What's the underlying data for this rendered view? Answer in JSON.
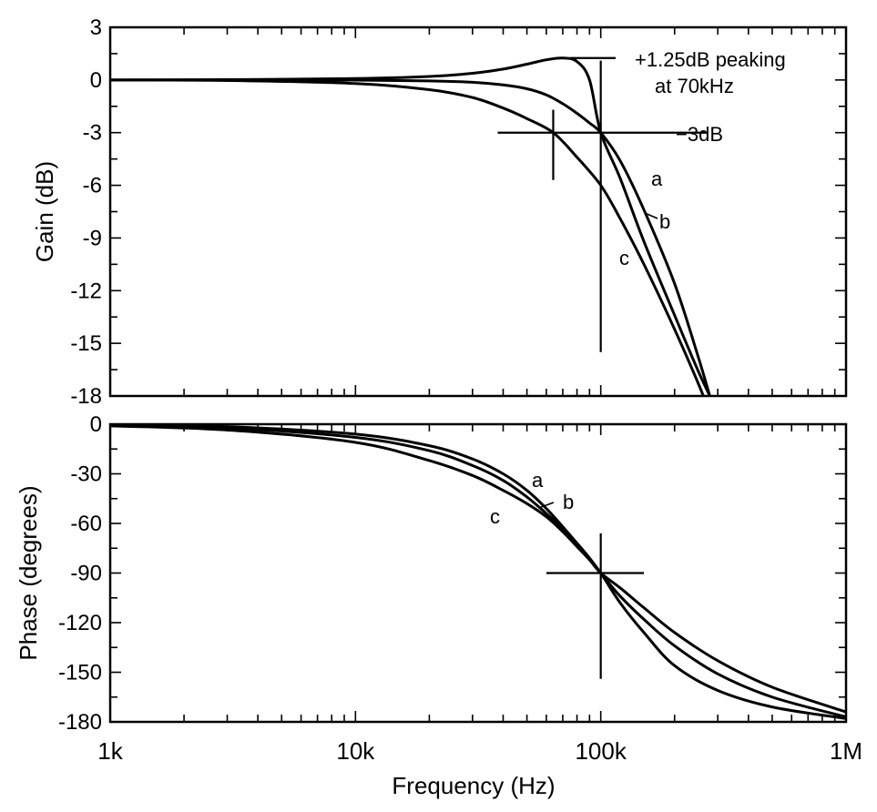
{
  "chart_data": [
    {
      "type": "line",
      "title": "",
      "xlabel": "Frequency (Hz)",
      "ylabel": "Gain (dB)",
      "xscale": "log",
      "xlim": [
        1000,
        1000000
      ],
      "ylim": [
        -18,
        3
      ],
      "xticks": [
        {
          "value": 1000,
          "label": "1k"
        },
        {
          "value": 10000,
          "label": "10k"
        },
        {
          "value": 100000,
          "label": "100k"
        },
        {
          "value": 1000000,
          "label": "1M"
        }
      ],
      "yticks": [
        {
          "value": 3,
          "label": "3"
        },
        {
          "value": 0,
          "label": "0"
        },
        {
          "value": -3,
          "label": "-3"
        },
        {
          "value": -6,
          "label": "-6"
        },
        {
          "value": -9,
          "label": "-9"
        },
        {
          "value": -12,
          "label": "-12"
        },
        {
          "value": -15,
          "label": "-15"
        },
        {
          "value": -18,
          "label": "-18"
        }
      ],
      "series": [
        {
          "name": "a",
          "x": [
            1000,
            3000,
            10000,
            20000,
            30000,
            40000,
            50000,
            60000,
            70000,
            80000,
            90000,
            100000,
            120000,
            150000,
            200000,
            250000,
            290000
          ],
          "y": [
            0,
            0.02,
            0.08,
            0.2,
            0.38,
            0.62,
            0.9,
            1.15,
            1.25,
            1.05,
            0.0,
            -3,
            -5.6,
            -9.2,
            -13.4,
            -16.6,
            -18.5
          ]
        },
        {
          "name": "b",
          "x": [
            1000,
            3000,
            10000,
            20000,
            30000,
            40000,
            50000,
            60000,
            70000,
            80000,
            90000,
            100000,
            120000,
            150000,
            200000,
            250000,
            285000
          ],
          "y": [
            0,
            0,
            -0.01,
            -0.05,
            -0.13,
            -0.28,
            -0.5,
            -0.85,
            -1.35,
            -1.9,
            -2.45,
            -3,
            -4.6,
            -7.4,
            -11.6,
            -15.8,
            -18.5
          ]
        },
        {
          "name": "c",
          "x": [
            1000,
            3000,
            10000,
            20000,
            30000,
            40000,
            50000,
            64000,
            80000,
            100000,
            120000,
            150000,
            200000,
            250000,
            270000
          ],
          "y": [
            0,
            -0.03,
            -0.2,
            -0.55,
            -1.0,
            -1.6,
            -2.2,
            -3,
            -4.4,
            -6.0,
            -7.9,
            -10.5,
            -14.2,
            -17.3,
            -18.5
          ]
        }
      ],
      "curve_labels": [
        "a",
        "b",
        "c"
      ],
      "annotations": [
        {
          "text_line1": "+1.25dB peaking",
          "text_line2": "at 70kHz",
          "x": 70000,
          "y": 1.25
        },
        {
          "text": "−3dB",
          "y": -3
        }
      ],
      "markers": [
        {
          "x": 100000,
          "y": -3
        },
        {
          "x": 64000,
          "y": -3
        }
      ]
    },
    {
      "type": "line",
      "title": "",
      "xlabel": "Frequency (Hz)",
      "ylabel": "Phase (degrees)",
      "xscale": "log",
      "xlim": [
        1000,
        1000000
      ],
      "ylim": [
        -180,
        0
      ],
      "xticks": [
        {
          "value": 1000,
          "label": "1k"
        },
        {
          "value": 10000,
          "label": "10k"
        },
        {
          "value": 100000,
          "label": "100k"
        },
        {
          "value": 1000000,
          "label": "1M"
        }
      ],
      "yticks": [
        {
          "value": 0,
          "label": "0"
        },
        {
          "value": -30,
          "label": "-30"
        },
        {
          "value": -60,
          "label": "-60"
        },
        {
          "value": -90,
          "label": "-90"
        },
        {
          "value": -120,
          "label": "-120"
        },
        {
          "value": -150,
          "label": "-150"
        },
        {
          "value": -180,
          "label": "-180"
        }
      ],
      "series": [
        {
          "name": "a",
          "x": [
            1000,
            3000,
            10000,
            20000,
            30000,
            40000,
            50000,
            60000,
            70000,
            80000,
            90000,
            100000,
            120000,
            150000,
            200000,
            300000,
            500000,
            1000000
          ],
          "y": [
            -0.5,
            -1.5,
            -6,
            -13,
            -21,
            -30,
            -40,
            -51,
            -62,
            -72,
            -81,
            -90,
            -108,
            -126,
            -146,
            -161,
            -171,
            -178
          ]
        },
        {
          "name": "b",
          "x": [
            1000,
            3000,
            10000,
            20000,
            30000,
            40000,
            50000,
            60000,
            70000,
            80000,
            90000,
            100000,
            120000,
            150000,
            200000,
            300000,
            500000,
            1000000
          ],
          "y": [
            -0.7,
            -2.3,
            -8,
            -16,
            -25,
            -34,
            -44,
            -54,
            -63,
            -72,
            -81,
            -90,
            -104,
            -118,
            -134,
            -151,
            -165,
            -177
          ]
        },
        {
          "name": "c",
          "x": [
            1000,
            3000,
            10000,
            20000,
            30000,
            40000,
            50000,
            60000,
            70000,
            80000,
            90000,
            100000,
            120000,
            150000,
            200000,
            300000,
            500000,
            1000000
          ],
          "y": [
            -1,
            -3.5,
            -11,
            -22,
            -31,
            -40,
            -48,
            -56,
            -65,
            -74,
            -82,
            -90,
            -99,
            -111,
            -126,
            -143,
            -159,
            -174
          ]
        }
      ],
      "curve_labels": [
        "a",
        "b",
        "c"
      ],
      "markers": [
        {
          "x": 100000,
          "y": -90
        }
      ]
    }
  ]
}
